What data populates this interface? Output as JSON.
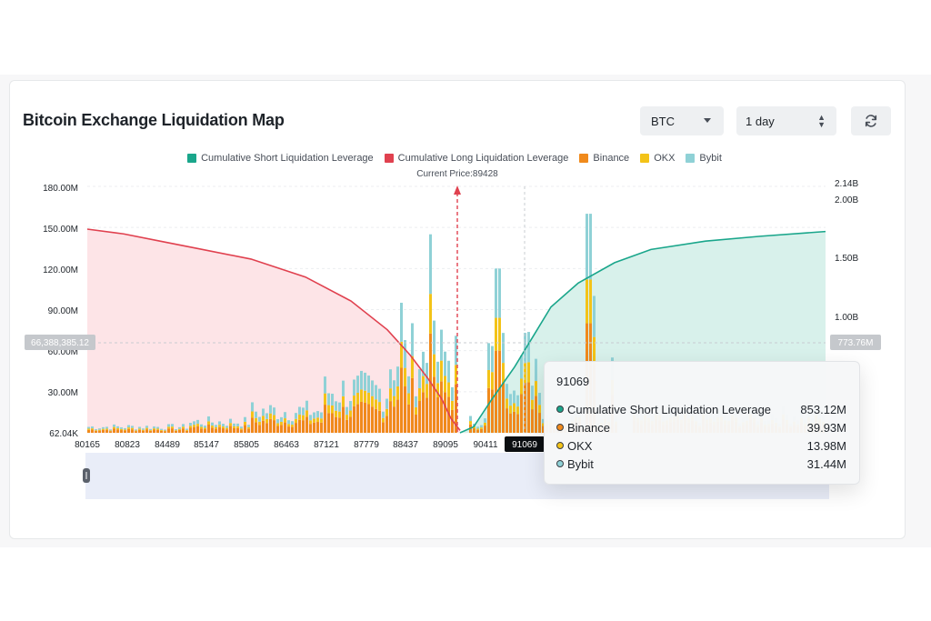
{
  "header": {
    "title": "Bitcoin Exchange Liquidation Map",
    "asset_select": "BTC",
    "period_select": "1 day"
  },
  "icons": {
    "refresh": "refresh-icon",
    "dropdown": "caret-down-icon",
    "stepper": "up-down-icon"
  },
  "colors": {
    "short_line": "#1aa68b",
    "short_fill": "#d8f1eb",
    "long_line": "#e0414f",
    "long_fill": "#fde4e7",
    "binance": "#f08a1c",
    "okx": "#f3c318",
    "bybit": "#8fd1d6"
  },
  "chart_data": {
    "type": "bar",
    "title": "Bitcoin Exchange Liquidation Map",
    "current_price_label": "Current Price:89428",
    "current_price": 89428,
    "x_ticks": [
      "80165",
      "80823",
      "84489",
      "85147",
      "85805",
      "86463",
      "87121",
      "87779",
      "88437",
      "89095",
      "90411",
      "91069"
    ],
    "highlight_x": "91069",
    "y_left_ticks": [
      "62.04K",
      "30.00M",
      "60.00M",
      "90.00M",
      "120.00M",
      "150.00M",
      "180.00M"
    ],
    "y_left_range": [
      0,
      180000000
    ],
    "y_right_ticks": [
      "1.00B",
      "1.50B",
      "2.00B",
      "2.14B"
    ],
    "y_right_range": [
      0,
      2140000000
    ],
    "crosshair_left_label": "66,388,385.12",
    "crosshair_right_label": "773.76M",
    "legend": [
      {
        "name": "Cumulative Short Liquidation Leverage",
        "color": "#1aa68b"
      },
      {
        "name": "Cumulative Long Liquidation Leverage",
        "color": "#e0414f"
      },
      {
        "name": "Binance",
        "color": "#f08a1c"
      },
      {
        "name": "OKX",
        "color": "#f3c318"
      },
      {
        "name": "Bybit",
        "color": "#8fd1d6"
      }
    ],
    "long_cumulative": [
      [
        0,
        1700000000.0
      ],
      [
        40,
        1660000000.0
      ],
      [
        80,
        1600000000.0
      ],
      [
        120,
        1540000000.0
      ],
      [
        180,
        1450000000.0
      ],
      [
        240,
        1300000000.0
      ],
      [
        290,
        1100000000.0
      ],
      [
        330,
        860000000.0
      ],
      [
        355,
        650000000.0
      ],
      [
        375,
        450000000.0
      ],
      [
        390,
        280000000.0
      ],
      [
        400,
        120000000.0
      ],
      [
        410,
        20000000.0
      ]
    ],
    "short_cumulative": [
      [
        410,
        0.0
      ],
      [
        425,
        50000000.0
      ],
      [
        445,
        280000000.0
      ],
      [
        470,
        550000000.0
      ],
      [
        490,
        800000000.0
      ],
      [
        510,
        1050000000.0
      ],
      [
        540,
        1250000000.0
      ],
      [
        580,
        1420000000.0
      ],
      [
        620,
        1530000000.0
      ],
      [
        680,
        1600000000.0
      ],
      [
        740,
        1640000000.0
      ],
      [
        812,
        1680000000.0
      ]
    ],
    "bars_sample": [
      {
        "x": 345,
        "binance": 40000000.0,
        "okx": 25000000.0,
        "bybit": 38000000.0
      },
      {
        "x": 375,
        "binance": 60000000.0,
        "okx": 40000000.0,
        "bybit": 50000000.0
      },
      {
        "x": 450,
        "binance": 70000000.0,
        "okx": 35000000.0,
        "bybit": 70000000.0
      }
    ],
    "tooltip": {
      "title": "91069",
      "rows": [
        {
          "label": "Cumulative Short Liquidation Leverage",
          "value": "853.12M",
          "color": "#1aa68b"
        },
        {
          "label": "Binance",
          "value": "39.93M",
          "color": "#f08a1c"
        },
        {
          "label": "OKX",
          "value": "13.98M",
          "color": "#f3c318"
        },
        {
          "label": "Bybit",
          "value": "31.44M",
          "color": "#8fd1d6"
        }
      ]
    }
  }
}
